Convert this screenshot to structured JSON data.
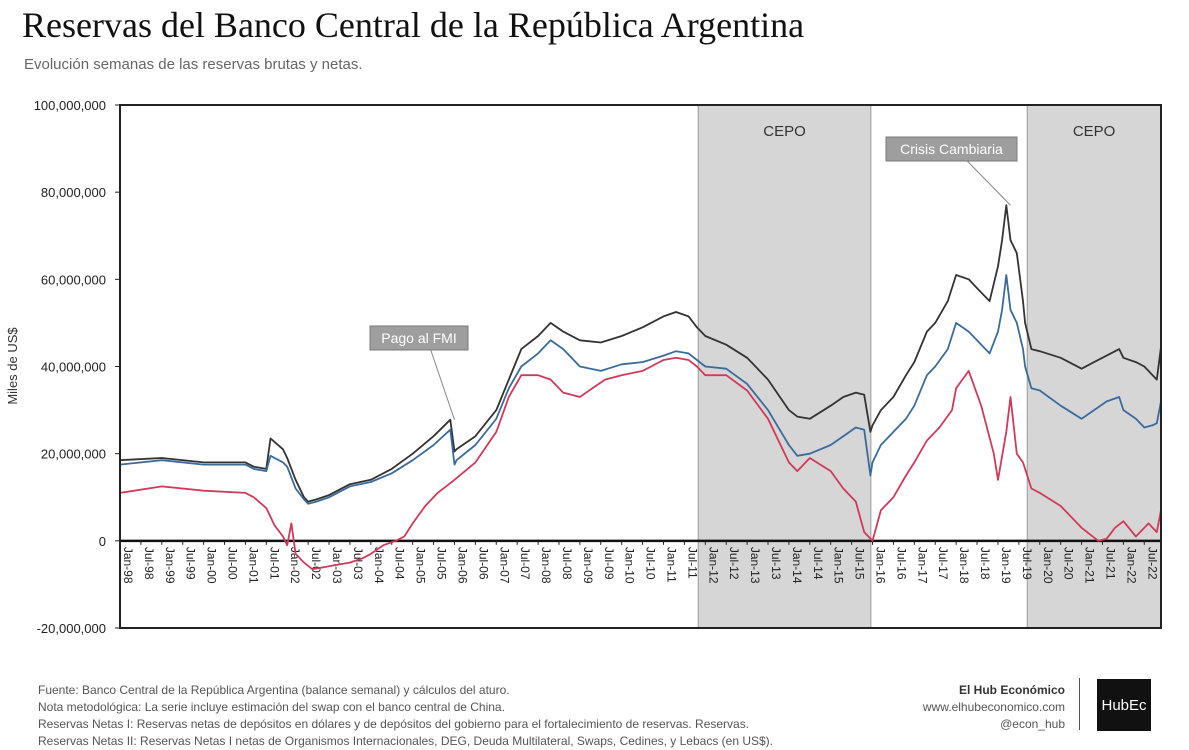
{
  "title": "Reservas del Banco Central de la República Argentina",
  "subtitle": "Evolución semanas de las reservas brutas y netas.",
  "footer": {
    "line1": "Fuente: Banco Central de la República Argentina (balance semanal) y cálculos del aturo.",
    "line2": "Nota metodológica: La serie incluye estimación del swap con el banco central de China.",
    "line3": "Reservas Netas I: Reservas netas de depósitos en dólares y de depósitos del gobierno para el fortalecimiento de reservas. Reservas.",
    "line4": "Reservas Netas II: Reservas Netas I netas de Organismos Internacionales, DEG, Deuda Multilateral, Swaps, Cedines, y Lebacs (en US$)."
  },
  "brand": {
    "name": "El Hub Económico",
    "url": "www.elhubeconomico.com",
    "handle": "@econ_hub",
    "logo": "HubEc"
  },
  "chart_data": {
    "type": "line",
    "ylabel": "Miles de US$",
    "ylim": [
      -20000000,
      100000000
    ],
    "yticks": [
      -20000000,
      0,
      20000000,
      40000000,
      60000000,
      80000000,
      100000000
    ],
    "ytick_labels": [
      "-20,000,000",
      "0",
      "20,000,000",
      "40,000,000",
      "60,000,000",
      "80,000,000",
      "100,000,000"
    ],
    "xlim": [
      1998.0,
      2022.9
    ],
    "xtick_labels": [
      "Jan-98",
      "Jul-98",
      "Jan-99",
      "Jul-99",
      "Jan-00",
      "Jul-00",
      "Jan-01",
      "Jul-01",
      "Jan-02",
      "Jul-02",
      "Jan-03",
      "Jul-03",
      "Jan-04",
      "Jul-04",
      "Jan-05",
      "Jul-05",
      "Jan-06",
      "Jul-06",
      "Jan-07",
      "Jul-07",
      "Jan-08",
      "Jul-08",
      "Jan-09",
      "Jul-09",
      "Jan-10",
      "Jul-10",
      "Jan-11",
      "Jul-11",
      "Jan-12",
      "Jul-12",
      "Jan-13",
      "Jul-13",
      "Jan-14",
      "Jul-14",
      "Jan-15",
      "Jul-15",
      "Jan-16",
      "Jul-16",
      "Jan-17",
      "Jul-17",
      "Jan-18",
      "Jul-18",
      "Jan-19",
      "Jul-19",
      "Jan-20",
      "Jul-20",
      "Jan-21",
      "Jul-21",
      "Jan-22",
      "Jul-22"
    ],
    "grid": false,
    "shaded_regions": [
      {
        "label": "CEPO",
        "start": 2011.83,
        "end": 2015.96
      },
      {
        "label": "CEPO",
        "start": 2019.7,
        "end": 2022.9
      }
    ],
    "annotations": [
      {
        "text": "Pago al FMI",
        "x": 2006.0,
        "y": 27800000
      },
      {
        "text": "Crisis Cambiaria",
        "x": 2019.3,
        "y": 77000000
      }
    ],
    "series": [
      {
        "color": "#333333",
        "x": [
          1998.0,
          1999.0,
          2000.0,
          2001.0,
          2001.2,
          2001.5,
          2001.6,
          2001.9,
          2002.0,
          2002.2,
          2002.4,
          2002.5,
          2002.7,
          2003.0,
          2003.5,
          2004.0,
          2004.5,
          2005.0,
          2005.5,
          2005.9,
          2006.0,
          2006.05,
          2006.5,
          2007.0,
          2007.3,
          2007.6,
          2008.0,
          2008.3,
          2008.6,
          2009.0,
          2009.5,
          2010.0,
          2010.5,
          2011.0,
          2011.3,
          2011.6,
          2011.8,
          2012.0,
          2012.5,
          2013.0,
          2013.5,
          2014.0,
          2014.2,
          2014.5,
          2015.0,
          2015.3,
          2015.6,
          2015.8,
          2015.95,
          2016.0,
          2016.2,
          2016.5,
          2016.8,
          2017.0,
          2017.3,
          2017.5,
          2017.8,
          2018.0,
          2018.3,
          2018.5,
          2018.8,
          2019.0,
          2019.1,
          2019.2,
          2019.3,
          2019.45,
          2019.6,
          2019.65,
          2019.8,
          2020.0,
          2020.5,
          2021.0,
          2021.3,
          2021.6,
          2021.9,
          2022.0,
          2022.3,
          2022.5,
          2022.7,
          2022.8,
          2022.9
        ],
        "values": [
          18500000,
          19000000,
          18000000,
          18000000,
          17000000,
          16500000,
          23500000,
          21000000,
          19000000,
          14000000,
          10000000,
          9000000,
          9500000,
          10500000,
          13000000,
          14000000,
          16500000,
          20000000,
          24000000,
          27800000,
          20500000,
          21000000,
          24000000,
          30000000,
          37000000,
          44000000,
          47000000,
          50000000,
          48000000,
          46000000,
          45500000,
          47000000,
          49000000,
          51500000,
          52500000,
          51500000,
          49000000,
          47000000,
          45000000,
          42000000,
          37000000,
          30000000,
          28500000,
          28000000,
          31000000,
          33000000,
          34000000,
          33500000,
          25000000,
          26500000,
          30000000,
          33000000,
          38000000,
          41000000,
          48000000,
          50000000,
          55000000,
          61000000,
          60000000,
          58000000,
          55000000,
          63000000,
          69000000,
          77000000,
          69000000,
          66000000,
          55000000,
          50000000,
          44000000,
          43500000,
          42000000,
          39500000,
          41000000,
          42500000,
          44000000,
          42000000,
          41000000,
          40000000,
          38000000,
          37000000,
          44500000
        ]
      },
      {
        "color": "#3a6b9c",
        "x": [
          1998.0,
          1999.0,
          2000.0,
          2001.0,
          2001.2,
          2001.5,
          2001.6,
          2001.9,
          2002.0,
          2002.2,
          2002.4,
          2002.5,
          2002.7,
          2003.0,
          2003.5,
          2004.0,
          2004.5,
          2005.0,
          2005.5,
          2005.9,
          2006.0,
          2006.05,
          2006.5,
          2007.0,
          2007.3,
          2007.6,
          2008.0,
          2008.3,
          2008.6,
          2009.0,
          2009.5,
          2010.0,
          2010.5,
          2011.0,
          2011.3,
          2011.6,
          2011.8,
          2012.0,
          2012.5,
          2013.0,
          2013.5,
          2014.0,
          2014.2,
          2014.5,
          2015.0,
          2015.3,
          2015.6,
          2015.8,
          2015.95,
          2016.0,
          2016.2,
          2016.5,
          2016.8,
          2017.0,
          2017.3,
          2017.5,
          2017.8,
          2018.0,
          2018.3,
          2018.5,
          2018.8,
          2019.0,
          2019.1,
          2019.2,
          2019.3,
          2019.45,
          2019.6,
          2019.65,
          2019.8,
          2020.0,
          2020.5,
          2021.0,
          2021.3,
          2021.6,
          2021.9,
          2022.0,
          2022.3,
          2022.5,
          2022.7,
          2022.8,
          2022.9
        ],
        "values": [
          17500000,
          18500000,
          17500000,
          17500000,
          16500000,
          16000000,
          19500000,
          18000000,
          17000000,
          12000000,
          9500000,
          8500000,
          9000000,
          10000000,
          12500000,
          13500000,
          15500000,
          18500000,
          22000000,
          25500000,
          17500000,
          18500000,
          22000000,
          28000000,
          35000000,
          40000000,
          43000000,
          46000000,
          44000000,
          40000000,
          39000000,
          40500000,
          41000000,
          42500000,
          43500000,
          43000000,
          41500000,
          40000000,
          39500000,
          36000000,
          30000000,
          22000000,
          19500000,
          20000000,
          22000000,
          24000000,
          26000000,
          25500000,
          15000000,
          18000000,
          22000000,
          25000000,
          28000000,
          31000000,
          38000000,
          40000000,
          44000000,
          50000000,
          48000000,
          46000000,
          43000000,
          48000000,
          53000000,
          61000000,
          53000000,
          50000000,
          44000000,
          40000000,
          35000000,
          34500000,
          31000000,
          28000000,
          30000000,
          32000000,
          33000000,
          30000000,
          28000000,
          26000000,
          26500000,
          27000000,
          32000000
        ]
      },
      {
        "color": "#d03a5a",
        "x": [
          1998.0,
          1999.0,
          2000.0,
          2001.0,
          2001.2,
          2001.5,
          2001.7,
          2001.9,
          2002.0,
          2002.1,
          2002.2,
          2002.4,
          2002.6,
          2002.9,
          2003.2,
          2003.5,
          2003.8,
          2004.0,
          2004.3,
          2004.6,
          2004.8,
          2005.0,
          2005.3,
          2005.6,
          2006.0,
          2006.5,
          2007.0,
          2007.3,
          2007.6,
          2008.0,
          2008.3,
          2008.6,
          2009.0,
          2009.3,
          2009.6,
          2010.0,
          2010.5,
          2011.0,
          2011.3,
          2011.6,
          2011.8,
          2012.0,
          2012.5,
          2013.0,
          2013.5,
          2014.0,
          2014.2,
          2014.5,
          2015.0,
          2015.3,
          2015.6,
          2015.8,
          2016.0,
          2016.2,
          2016.5,
          2016.8,
          2017.0,
          2017.3,
          2017.6,
          2017.9,
          2018.0,
          2018.3,
          2018.6,
          2018.9,
          2019.0,
          2019.2,
          2019.3,
          2019.45,
          2019.6,
          2019.8,
          2020.0,
          2020.5,
          2021.0,
          2021.2,
          2021.4,
          2021.6,
          2021.8,
          2022.0,
          2022.3,
          2022.6,
          2022.8,
          2022.9
        ],
        "values": [
          11000000,
          12500000,
          11500000,
          11000000,
          10000000,
          7500000,
          3500000,
          1000000,
          -1000000,
          4000000,
          -3000000,
          -5000000,
          -6500000,
          -6000000,
          -5500000,
          -5000000,
          -4000000,
          -3000000,
          -1000000,
          0,
          1000000,
          4000000,
          8000000,
          11000000,
          14000000,
          18000000,
          25000000,
          33000000,
          38000000,
          38000000,
          37000000,
          34000000,
          33000000,
          35000000,
          37000000,
          38000000,
          39000000,
          41500000,
          42000000,
          41500000,
          40000000,
          38000000,
          38000000,
          34500000,
          28000000,
          18000000,
          16000000,
          19000000,
          16000000,
          12000000,
          9000000,
          2000000,
          0,
          7000000,
          10000000,
          15000000,
          18000000,
          23000000,
          26000000,
          30000000,
          35000000,
          39000000,
          31000000,
          20000000,
          14000000,
          25000000,
          33000000,
          20000000,
          18000000,
          12000000,
          11000000,
          8000000,
          3000000,
          1500000,
          0,
          500000,
          3000000,
          4500000,
          1000000,
          4000000,
          2000000,
          7000000
        ]
      }
    ]
  }
}
